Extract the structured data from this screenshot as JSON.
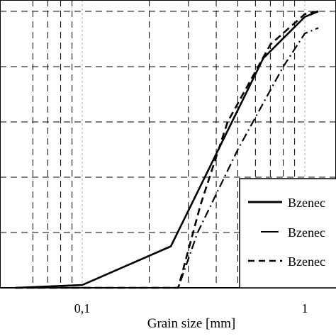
{
  "chart_data": {
    "type": "line",
    "xlabel": "Grain size [mm]",
    "ylabel": "",
    "title": "",
    "x_scale": "log",
    "xlim": [
      0.05,
      1.15
    ],
    "ylim": [
      0,
      100
    ],
    "grid": true,
    "legend_position": "right",
    "x_ticks": [
      {
        "value": 0.1,
        "label": "0,1"
      },
      {
        "value": 1,
        "label": "1"
      }
    ],
    "series": [
      {
        "name": "Bzenec",
        "style": "solid",
        "x": [
          0.05,
          0.1,
          0.25,
          0.65,
          1.0,
          1.15
        ],
        "y": [
          0,
          1,
          15,
          83,
          98,
          100
        ]
      },
      {
        "name": "Bzenec",
        "style": "dashdot",
        "x": [
          0.05,
          0.27,
          0.33,
          0.5,
          0.8,
          1.0,
          1.15
        ],
        "y": [
          0,
          0,
          20,
          50,
          80,
          92,
          94
        ]
      },
      {
        "name": "Bzenec",
        "style": "dashed",
        "x": [
          0.05,
          0.27,
          0.34,
          0.45,
          0.7,
          1.0,
          1.15
        ],
        "y": [
          0,
          0,
          30,
          60,
          88,
          99,
          100
        ]
      }
    ]
  }
}
